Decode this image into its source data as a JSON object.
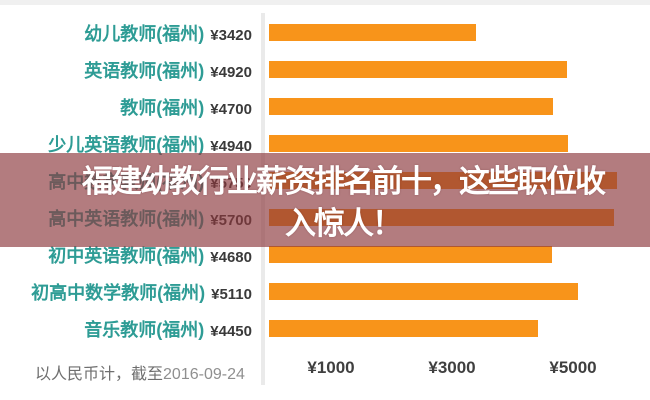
{
  "page": {
    "background": "#FFFFFF",
    "top_strip_color": "#F0F0F0"
  },
  "banner": {
    "line1": "福建幼教行业薪资排名前十，这些职位收",
    "line2": "入惊人！",
    "bg": "rgba(139,56,60,0.66)",
    "text_color": "#FFFFFF"
  },
  "chart_data": {
    "type": "bar",
    "orientation": "horizontal",
    "categories": [
      "幼儿教师(福州)",
      "英语教师(福州)",
      "教师(福州)",
      "少儿英语教师(福州)",
      "高中数学教师(福州)",
      "高中英语教师(福州)",
      "初中英语教师(福州)",
      "初高中数学教师(福州)",
      "音乐教师(福州)"
    ],
    "values": [
      3420,
      4920,
      4700,
      4940,
      5750,
      5700,
      4680,
      5110,
      4450
    ],
    "value_prefix": "¥",
    "value_labels": [
      "¥3420",
      "¥4920",
      "¥4700",
      "¥4940",
      "¥5750",
      "¥5700",
      "¥4680",
      "¥5110",
      "¥4450"
    ],
    "x_ticks": [
      {
        "label": "¥1000",
        "value": 1000
      },
      {
        "label": "¥3000",
        "value": 3000
      },
      {
        "label": "¥5000",
        "value": 5000
      }
    ],
    "xlim": [
      0,
      6300
    ],
    "grid": false,
    "legend": false,
    "bar_color": "#F8941A",
    "category_color": "#2E9C95",
    "value_color": "#3A3A3A",
    "tick_color": "#3F3F3F",
    "footnote": "以人民币计，截至2016-09-24"
  },
  "footer": {
    "prefix": "以人民币计，截至",
    "date": "2016-09-24"
  }
}
